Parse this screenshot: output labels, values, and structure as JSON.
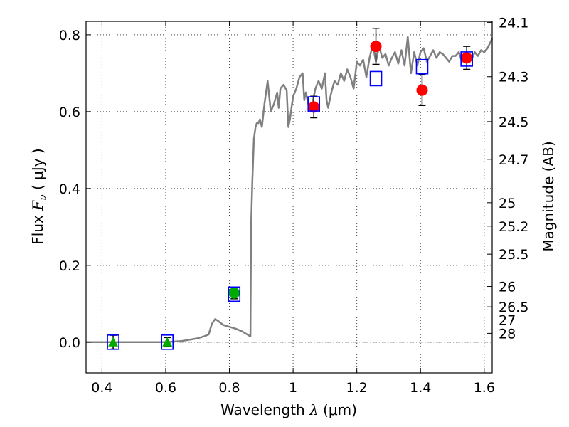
{
  "chart_data": {
    "type": "scatter",
    "xlabel": "Wavelength",
    "xlabel_symbol": "λ",
    "xlabel_unit": "(μm)",
    "ylabel": "Flux",
    "ylabel_symbol": "F",
    "ylabel_subscript": "ν",
    "ylabel_unit": "( μJy )",
    "ylabel_right": "Magnitude (AB)",
    "xlim": [
      0.35,
      1.625
    ],
    "ylim": [
      -0.08,
      0.835
    ],
    "x_ticks": [
      0.4,
      0.6,
      0.8,
      1.0,
      1.2,
      1.4,
      1.6
    ],
    "x_tick_labels": [
      "0.4",
      "0.6",
      "0.8",
      "1",
      "1.2",
      "1.4",
      "1.6"
    ],
    "y_ticks": [
      0.0,
      0.2,
      0.4,
      0.6,
      0.8
    ],
    "y_tick_labels": [
      "0.0",
      "0.2",
      "0.4",
      "0.6",
      "0.8"
    ],
    "right_ticks": [
      {
        "flux": 0.832,
        "label": "24.1"
      },
      {
        "flux": 0.691,
        "label": "24.3"
      },
      {
        "flux": 0.574,
        "label": "24.5"
      },
      {
        "flux": 0.476,
        "label": "24.7"
      },
      {
        "flux": 0.363,
        "label": "25"
      },
      {
        "flux": 0.302,
        "label": "25.2"
      },
      {
        "flux": 0.229,
        "label": "25.5"
      },
      {
        "flux": 0.145,
        "label": "26"
      },
      {
        "flux": 0.092,
        "label": "26.5"
      },
      {
        "flux": 0.058,
        "label": "27"
      },
      {
        "flux": 0.023,
        "label": "28"
      }
    ],
    "grid": true,
    "zero_line": true,
    "model_spectrum": {
      "color": "#808080",
      "x": [
        0.35,
        0.6,
        0.65,
        0.68,
        0.7,
        0.72,
        0.735,
        0.745,
        0.755,
        0.765,
        0.78,
        0.8,
        0.82,
        0.84,
        0.86,
        0.866,
        0.868,
        0.872,
        0.877,
        0.882,
        0.886,
        0.891,
        0.896,
        0.902,
        0.91,
        0.92,
        0.925,
        0.93,
        0.94,
        0.95,
        0.955,
        0.96,
        0.97,
        0.98,
        0.985,
        0.99,
        1.0,
        1.01,
        1.02,
        1.03,
        1.035,
        1.04,
        1.05,
        1.06,
        1.07,
        1.08,
        1.09,
        1.1,
        1.105,
        1.11,
        1.12,
        1.13,
        1.14,
        1.15,
        1.16,
        1.17,
        1.18,
        1.19,
        1.2,
        1.21,
        1.22,
        1.23,
        1.24,
        1.25,
        1.26,
        1.27,
        1.28,
        1.29,
        1.3,
        1.31,
        1.32,
        1.33,
        1.34,
        1.35,
        1.36,
        1.37,
        1.38,
        1.39,
        1.4,
        1.41,
        1.42,
        1.43,
        1.44,
        1.45,
        1.46,
        1.47,
        1.48,
        1.49,
        1.5,
        1.51,
        1.52,
        1.53,
        1.54,
        1.55,
        1.56,
        1.57,
        1.58,
        1.59,
        1.6,
        1.61,
        1.625
      ],
      "y": [
        0.0,
        0.0,
        0.003,
        0.007,
        0.01,
        0.015,
        0.02,
        0.048,
        0.06,
        0.055,
        0.045,
        0.04,
        0.035,
        0.028,
        0.018,
        0.015,
        0.3,
        0.42,
        0.53,
        0.56,
        0.57,
        0.57,
        0.58,
        0.56,
        0.62,
        0.68,
        0.64,
        0.6,
        0.62,
        0.65,
        0.61,
        0.66,
        0.67,
        0.655,
        0.56,
        0.58,
        0.64,
        0.66,
        0.69,
        0.7,
        0.63,
        0.65,
        0.61,
        0.62,
        0.66,
        0.68,
        0.66,
        0.7,
        0.63,
        0.61,
        0.65,
        0.68,
        0.67,
        0.7,
        0.68,
        0.71,
        0.69,
        0.66,
        0.73,
        0.72,
        0.735,
        0.69,
        0.74,
        0.775,
        0.73,
        0.77,
        0.74,
        0.75,
        0.72,
        0.74,
        0.755,
        0.725,
        0.76,
        0.72,
        0.795,
        0.7,
        0.755,
        0.72,
        0.755,
        0.765,
        0.73,
        0.745,
        0.76,
        0.74,
        0.755,
        0.75,
        0.74,
        0.73,
        0.745,
        0.745,
        0.755,
        0.73,
        0.745,
        0.75,
        0.735,
        0.755,
        0.745,
        0.76,
        0.755,
        0.765,
        0.79
      ]
    },
    "series": [
      {
        "marker": "circle",
        "color": "#ff0000",
        "points": [
          {
            "x": 1.065,
            "y": 0.612,
            "err": 0.028
          },
          {
            "x": 1.26,
            "y": 0.77,
            "err": 0.047
          },
          {
            "x": 1.405,
            "y": 0.656,
            "err": 0.04
          },
          {
            "x": 1.545,
            "y": 0.74,
            "err": 0.03
          }
        ]
      },
      {
        "marker": "circle",
        "color": "#00aa00",
        "points": [
          {
            "x": 0.815,
            "y": 0.128,
            "err": 0.015
          }
        ]
      },
      {
        "marker": "triangle",
        "color": "#00aa00",
        "points": [
          {
            "x": 0.435,
            "y": 0.0,
            "err": 0.018
          },
          {
            "x": 0.605,
            "y": 0.0,
            "err": 0.012
          }
        ]
      },
      {
        "marker": "square-open",
        "color": "#0000ff",
        "points": [
          {
            "x": 0.435,
            "y": 0.0
          },
          {
            "x": 0.605,
            "y": 0.0
          },
          {
            "x": 0.815,
            "y": 0.125
          },
          {
            "x": 1.065,
            "y": 0.62
          },
          {
            "x": 1.26,
            "y": 0.686
          },
          {
            "x": 1.405,
            "y": 0.717
          },
          {
            "x": 1.545,
            "y": 0.737
          }
        ]
      }
    ]
  }
}
